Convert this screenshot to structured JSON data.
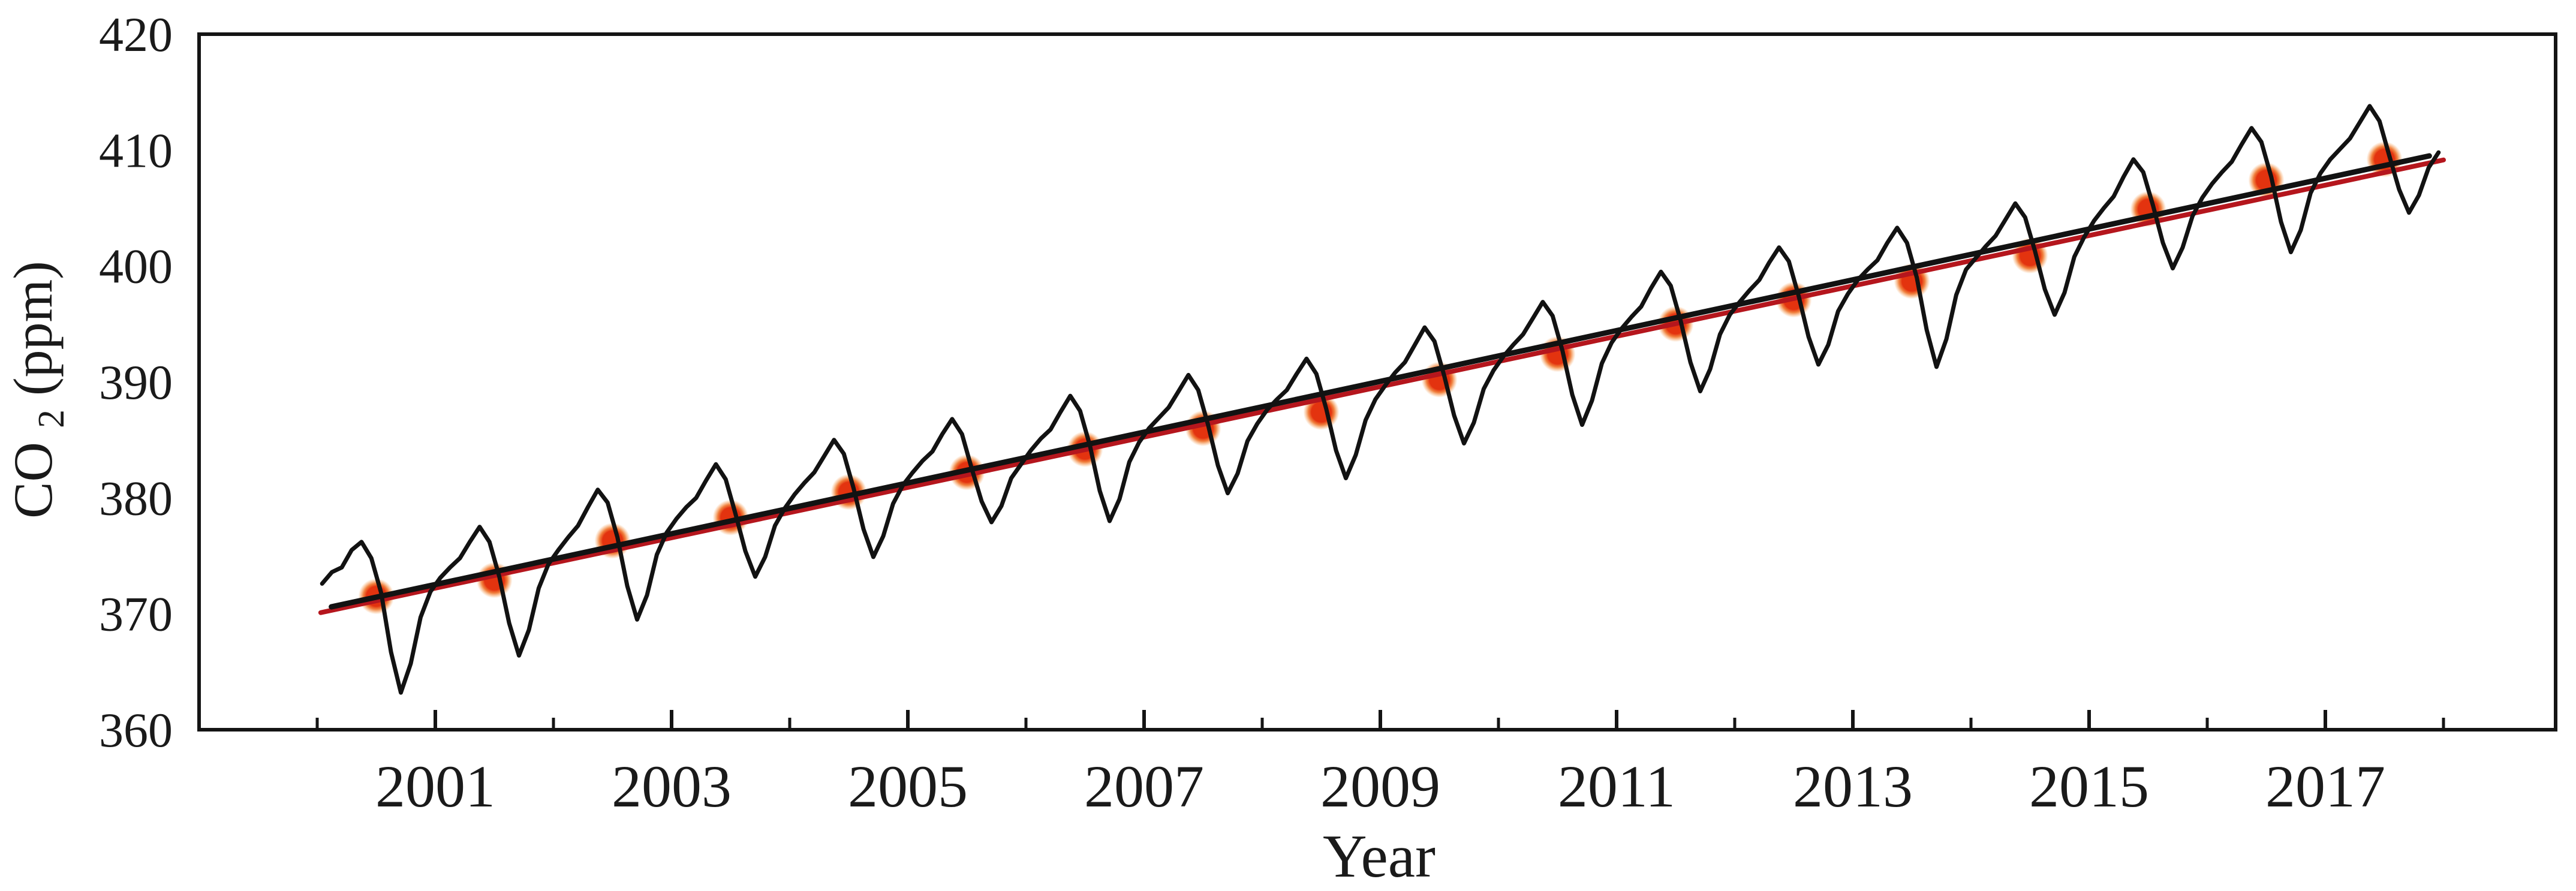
{
  "figure": {
    "kind": "scientific line chart",
    "background": "#ffffff",
    "frame_color": "#141414"
  },
  "chart_data": {
    "type": "line",
    "title": "",
    "xlabel": "Year",
    "ylabel": "CO2(ppm)",
    "ylabel_parts": {
      "prefix": "CO",
      "subscript": "2",
      "suffix": "(ppm)"
    },
    "xlim": [
      1999.0,
      2018.95
    ],
    "ylim": [
      360,
      420
    ],
    "grid": false,
    "legend": null,
    "y_ticks": [
      360,
      370,
      380,
      390,
      400,
      410,
      420
    ],
    "x_major_tick_years": [
      2001,
      2003,
      2005,
      2007,
      2009,
      2011,
      2013,
      2015,
      2017
    ],
    "x_tick_labels": [
      "2001",
      "2003",
      "2005",
      "2007",
      "2009",
      "2011",
      "2013",
      "2015",
      "2017"
    ],
    "x_minor_tick_years": [
      2000,
      2002,
      2004,
      2006,
      2008,
      2010,
      2012,
      2014,
      2016,
      2018
    ],
    "colors": {
      "monthly_line": "#121212",
      "black_trend": "#121212",
      "red_trend": "#b5161d",
      "dot_core": "#e3330f",
      "dot_halo": "#f59b45"
    },
    "series": [
      {
        "name": "monthly-co2-concentration",
        "type": "line",
        "color": "#121212",
        "note": "monthly values, plotted at year + (month-0.5)/12",
        "monthly": [
          {
            "year": 2000,
            "values": [
              372.6,
              373.6,
              374.0,
              375.5,
              376.2,
              374.8,
              371.8,
              366.7,
              363.2,
              365.7,
              369.7,
              371.9
            ]
          },
          {
            "year": 2001,
            "values": [
              373.1,
              374.0,
              374.8,
              376.2,
              377.5,
              376.2,
              373.2,
              369.2,
              366.4,
              368.6,
              372.2,
              374.3
            ]
          },
          {
            "year": 2002,
            "values": [
              375.5,
              376.6,
              377.6,
              379.2,
              380.7,
              379.6,
              376.6,
              372.4,
              369.5,
              371.6,
              375.1,
              377.0
            ]
          },
          {
            "year": 2003,
            "values": [
              378.2,
              379.2,
              380.0,
              381.5,
              382.9,
              381.6,
              378.6,
              375.4,
              373.2,
              374.9,
              377.6,
              379.1
            ]
          },
          {
            "year": 2004,
            "values": [
              380.3,
              381.3,
              382.2,
              383.6,
              385.0,
              383.8,
              380.8,
              377.3,
              374.9,
              376.7,
              379.5,
              381.1
            ]
          },
          {
            "year": 2005,
            "values": [
              382.2,
              383.2,
              384.0,
              385.5,
              386.8,
              385.5,
              382.5,
              379.7,
              377.9,
              379.3,
              381.7,
              382.9
            ]
          },
          {
            "year": 2006,
            "values": [
              384.1,
              385.1,
              385.9,
              387.4,
              388.8,
              387.5,
              384.5,
              380.6,
              378.0,
              379.9,
              383.1,
              384.8
            ]
          },
          {
            "year": 2007,
            "values": [
              386.0,
              386.9,
              387.8,
              389.2,
              390.6,
              389.3,
              386.3,
              382.8,
              380.4,
              382.1,
              384.9,
              386.4
            ]
          },
          {
            "year": 2008,
            "values": [
              387.6,
              388.5,
              389.3,
              390.7,
              392.0,
              390.7,
              387.7,
              384.1,
              381.7,
              383.7,
              386.7,
              388.5
            ]
          },
          {
            "year": 2009,
            "values": [
              389.7,
              390.8,
              391.7,
              393.2,
              394.7,
              393.5,
              390.5,
              387.1,
              384.7,
              386.5,
              389.4,
              391.0
            ]
          },
          {
            "year": 2010,
            "values": [
              392.2,
              393.2,
              394.1,
              395.5,
              396.9,
              395.7,
              392.7,
              388.9,
              386.3,
              388.4,
              391.6,
              393.4
            ]
          },
          {
            "year": 2011,
            "values": [
              394.6,
              395.6,
              396.5,
              398.1,
              399.5,
              398.3,
              395.3,
              391.7,
              389.2,
              391.1,
              394.1,
              395.8
            ]
          },
          {
            "year": 2012,
            "values": [
              396.9,
              397.9,
              398.8,
              400.3,
              401.6,
              400.4,
              397.4,
              393.9,
              391.5,
              393.2,
              396.1,
              397.6
            ]
          },
          {
            "year": 2013,
            "values": [
              398.8,
              399.7,
              400.5,
              402.0,
              403.3,
              402.0,
              399.0,
              394.5,
              391.3,
              393.7,
              397.5,
              399.7
            ]
          },
          {
            "year": 2014,
            "values": [
              400.7,
              401.7,
              402.6,
              404.0,
              405.4,
              404.2,
              401.3,
              398.0,
              395.8,
              397.7,
              400.8,
              402.5
            ]
          },
          {
            "year": 2015,
            "values": [
              403.9,
              405.0,
              406.0,
              407.7,
              409.2,
              408.1,
              405.2,
              402.0,
              399.8,
              401.6,
              404.3,
              405.9
            ]
          },
          {
            "year": 2016,
            "values": [
              407.1,
              408.1,
              409.0,
              410.5,
              411.9,
              410.7,
              407.7,
              403.8,
              401.2,
              403.1,
              406.3,
              408.0
            ]
          },
          {
            "year": 2017,
            "values": [
              409.2,
              410.1,
              411.0,
              412.4,
              413.8,
              412.5,
              409.5,
              406.6,
              404.6,
              406.1,
              408.5,
              409.8
            ]
          }
        ]
      },
      {
        "name": "annual-mean-dots",
        "type": "scatter",
        "color": "#e3330f",
        "x_position": "mid-year",
        "points": [
          {
            "year": 2000,
            "value": 371.5
          },
          {
            "year": 2001,
            "value": 372.9
          },
          {
            "year": 2002,
            "value": 376.3
          },
          {
            "year": 2003,
            "value": 378.3
          },
          {
            "year": 2004,
            "value": 380.5
          },
          {
            "year": 2005,
            "value": 382.2
          },
          {
            "year": 2006,
            "value": 384.2
          },
          {
            "year": 2007,
            "value": 386.0
          },
          {
            "year": 2008,
            "value": 387.4
          },
          {
            "year": 2009,
            "value": 390.2
          },
          {
            "year": 2010,
            "value": 392.4
          },
          {
            "year": 2011,
            "value": 395.0
          },
          {
            "year": 2012,
            "value": 397.1
          },
          {
            "year": 2013,
            "value": 398.7
          },
          {
            "year": 2014,
            "value": 400.9
          },
          {
            "year": 2015,
            "value": 404.9
          },
          {
            "year": 2016,
            "value": 407.4
          },
          {
            "year": 2017,
            "value": 409.2
          }
        ]
      },
      {
        "name": "black-trend-line",
        "type": "straight-line",
        "color": "#121212",
        "endpoints": [
          {
            "x": 2000.12,
            "y": 370.6
          },
          {
            "x": 2017.88,
            "y": 409.5
          }
        ]
      },
      {
        "name": "red-trend-line",
        "type": "straight-line",
        "color": "#b5161d",
        "endpoints": [
          {
            "x": 2000.03,
            "y": 370.1
          },
          {
            "x": 2018.0,
            "y": 409.15
          }
        ]
      }
    ]
  }
}
